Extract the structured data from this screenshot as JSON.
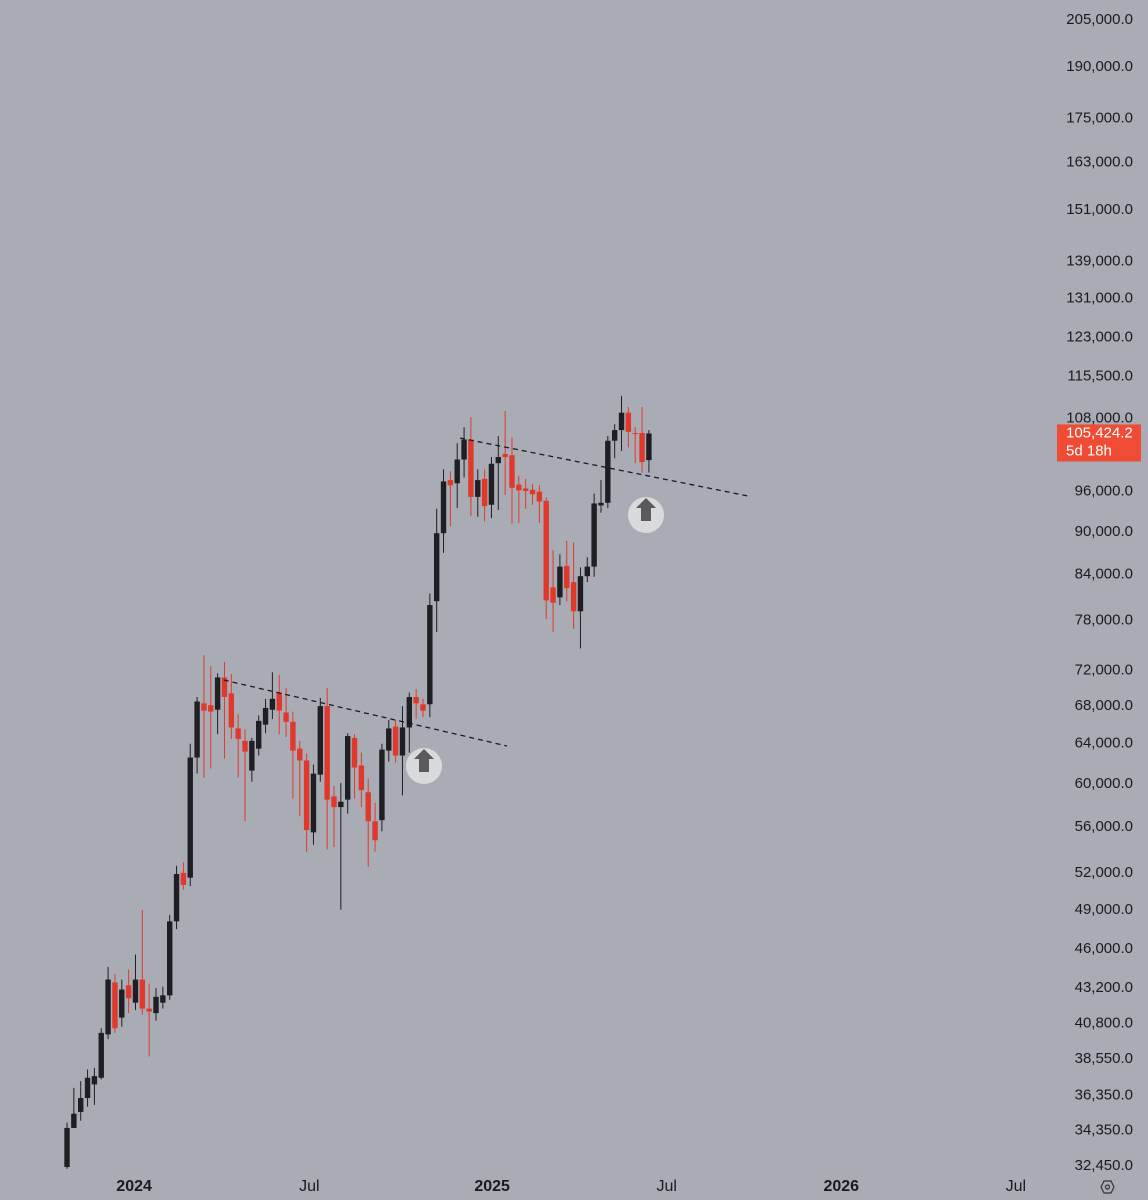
{
  "chart_data": {
    "type": "candlestick",
    "log_scale": true,
    "up_color": "#1e1f24",
    "down_color": "#e0392c",
    "xlim": [
      -9.79,
      143.3
    ],
    "ylim": [
      32140,
      211700
    ],
    "xticks": [
      {
        "value": 9.8,
        "label": "2024"
      },
      {
        "value": 35.4,
        "label": "Jul"
      },
      {
        "value": 62.1,
        "label": "2025"
      },
      {
        "value": 87.6,
        "label": "Jul"
      },
      {
        "value": 113.1,
        "label": "2026"
      },
      {
        "value": 138.6,
        "label": "Jul"
      }
    ],
    "yticks": [
      {
        "value": 205000,
        "label": "205,000.0"
      },
      {
        "value": 190000,
        "label": "190,000.0"
      },
      {
        "value": 175000,
        "label": "175,000.0"
      },
      {
        "value": 163000,
        "label": "163,000.0"
      },
      {
        "value": 151000,
        "label": "151,000.0"
      },
      {
        "value": 139000,
        "label": "139,000.0"
      },
      {
        "value": 131000,
        "label": "131,000.0"
      },
      {
        "value": 123000,
        "label": "123,000.0"
      },
      {
        "value": 115500,
        "label": "115,500.0"
      },
      {
        "value": 108000,
        "label": "108,000.0"
      },
      {
        "value": 96000,
        "label": "96,000.0"
      },
      {
        "value": 90000,
        "label": "90,000.0"
      },
      {
        "value": 84000,
        "label": "84,000.0"
      },
      {
        "value": 78000,
        "label": "78,000.0"
      },
      {
        "value": 72000,
        "label": "72,000.0"
      },
      {
        "value": 68000,
        "label": "68,000.0"
      },
      {
        "value": 64000,
        "label": "64,000.0"
      },
      {
        "value": 60000,
        "label": "60,000.0"
      },
      {
        "value": 56000,
        "label": "56,000.0"
      },
      {
        "value": 52000,
        "label": "52,000.0"
      },
      {
        "value": 49000,
        "label": "49,000.0"
      },
      {
        "value": 46000,
        "label": "46,000.0"
      },
      {
        "value": 43200,
        "label": "43,200.0"
      },
      {
        "value": 40800,
        "label": "40,800.0"
      },
      {
        "value": 38550,
        "label": "38,550.0"
      },
      {
        "value": 36350,
        "label": "36,350.0"
      },
      {
        "value": 34350,
        "label": "34,350.0"
      },
      {
        "value": 32450,
        "label": "32,450.0"
      }
    ],
    "last_price": {
      "value": 105424.2,
      "label": "105,424.2",
      "color": "#ef4b35"
    },
    "countdown": "5d 18h",
    "open": [
      32400,
      34500,
      35400,
      36200,
      37000,
      37400,
      40100,
      43600,
      41200,
      43400,
      42200,
      43800,
      41800,
      41500,
      42200,
      42700,
      48100,
      52000,
      51600,
      62600,
      68300,
      68100,
      67600,
      71200,
      69400,
      65600,
      64300,
      61300,
      63500,
      66000,
      67600,
      69500,
      67300,
      66300,
      63500,
      62300,
      55500,
      60900,
      68000,
      58800,
      57800,
      58500,
      64600,
      61800,
      59200,
      56500,
      56600,
      63300,
      65800,
      62800,
      65700,
      69000,
      68200,
      68200,
      80500,
      89800,
      97800,
      97300,
      101100,
      104400,
      95200,
      98000,
      94000,
      100500,
      102000,
      101800,
      97100,
      96500,
      96300,
      96000,
      94600,
      82300,
      81000,
      85200,
      83000,
      79200,
      83800,
      85100,
      93900,
      94300,
      104200,
      106000,
      109000,
      105500,
      105500,
      101000
    ],
    "high": [
      34800,
      36800,
      37200,
      37900,
      38000,
      40500,
      44700,
      44200,
      43800,
      44500,
      45600,
      49000,
      43500,
      43200,
      43300,
      48600,
      52600,
      52900,
      64000,
      69000,
      73800,
      72500,
      71700,
      73000,
      71600,
      67100,
      65500,
      64600,
      67000,
      68800,
      71800,
      71500,
      70000,
      67400,
      64300,
      63000,
      61900,
      68900,
      70000,
      59800,
      60100,
      65100,
      65000,
      63100,
      60500,
      58200,
      64000,
      66500,
      66500,
      68000,
      69500,
      69900,
      68800,
      81500,
      93400,
      99500,
      99200,
      103800,
      106500,
      108200,
      99500,
      99500,
      101500,
      105000,
      109300,
      104800,
      98500,
      98000,
      97200,
      97000,
      95100,
      87400,
      86800,
      88700,
      88500,
      85000,
      86400,
      95700,
      97800,
      105000,
      107000,
      112000,
      110000,
      106500,
      110000,
      106000
    ],
    "low": [
      32300,
      34500,
      34900,
      35700,
      35800,
      37300,
      39800,
      40200,
      40600,
      41500,
      41700,
      41400,
      38700,
      41000,
      41800,
      42400,
      47500,
      50600,
      50900,
      61000,
      60600,
      61500,
      65000,
      62500,
      64500,
      60600,
      56500,
      60200,
      62800,
      65100,
      66600,
      65000,
      64700,
      58600,
      57000,
      53800,
      54400,
      60200,
      54000,
      54200,
      49000,
      57200,
      58600,
      57800,
      52500,
      53800,
      55600,
      62200,
      62100,
      58900,
      63100,
      66600,
      66800,
      66800,
      76600,
      87000,
      90800,
      93500,
      98200,
      92300,
      92200,
      91500,
      92000,
      93200,
      95500,
      91200,
      91300,
      93400,
      94000,
      91300,
      78200,
      76600,
      80000,
      80500,
      77000,
      74600,
      83000,
      83700,
      92800,
      93500,
      101300,
      102500,
      103100,
      100500,
      99000,
      99000
    ],
    "close": [
      34500,
      35300,
      36200,
      37400,
      37500,
      40200,
      43800,
      40500,
      43100,
      42500,
      43800,
      41800,
      41600,
      42600,
      42700,
      48100,
      51900,
      51000,
      62600,
      68500,
      67500,
      67400,
      71200,
      69000,
      65700,
      64500,
      63200,
      64300,
      66400,
      67800,
      68800,
      67500,
      66300,
      63300,
      62300,
      55700,
      61000,
      68000,
      58500,
      57800,
      58300,
      64800,
      61600,
      59400,
      56500,
      54800,
      63400,
      65600,
      62800,
      65700,
      69000,
      68300,
      67500,
      80000,
      89800,
      97600,
      97000,
      101100,
      104400,
      95200,
      97800,
      93800,
      100400,
      101500,
      101500,
      96600,
      96200,
      96100,
      95600,
      94500,
      80600,
      80300,
      85100,
      82200,
      79200,
      83800,
      85100,
      94200,
      94300,
      104200,
      106000,
      109000,
      105700,
      105400,
      100700,
      105424.2
    ]
  }
}
